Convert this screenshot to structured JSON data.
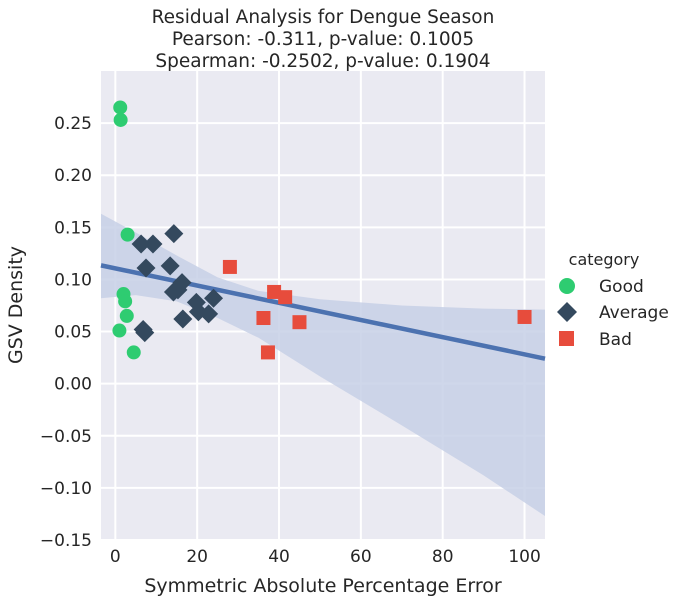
{
  "chart_data": {
    "type": "scatter",
    "title_lines": [
      "Residual Analysis for Dengue Season",
      "Pearson: -0.311, p-value: 0.1005",
      "Spearman: -0.2502, p-value: 0.1904"
    ],
    "xlabel": "Symmetric Absolute Percentage Error",
    "ylabel": "GSV Density",
    "xlim": [
      -3.5,
      105
    ],
    "ylim": [
      -0.15,
      0.3
    ],
    "xticks": [
      0,
      20,
      40,
      60,
      80,
      100
    ],
    "yticks": [
      -0.15,
      -0.1,
      -0.05,
      0.0,
      0.05,
      0.1,
      0.15,
      0.2,
      0.25
    ],
    "ytick_labels": [
      "−0.15",
      "−0.10",
      "−0.05",
      "0.00",
      "0.05",
      "0.10",
      "0.15",
      "0.20",
      "0.25"
    ],
    "xtick_labels": [
      "0",
      "20",
      "40",
      "60",
      "80",
      "100"
    ],
    "grid": true,
    "background": "#eaeaf2",
    "legend": {
      "title": "category",
      "placement": "right",
      "entries": [
        "Good",
        "Average",
        "Bad"
      ]
    },
    "series": [
      {
        "name": "Good",
        "marker": "circle",
        "color": "#2ecc71",
        "points": [
          [
            1.2,
            0.265
          ],
          [
            1.3,
            0.253
          ],
          [
            3.0,
            0.143
          ],
          [
            2.0,
            0.086
          ],
          [
            2.4,
            0.079
          ],
          [
            2.8,
            0.065
          ],
          [
            1.0,
            0.051
          ],
          [
            4.5,
            0.03
          ]
        ]
      },
      {
        "name": "Average",
        "marker": "diamond",
        "color": "#34495e",
        "points": [
          [
            6.3,
            0.134
          ],
          [
            9.2,
            0.134
          ],
          [
            14.3,
            0.144
          ],
          [
            7.5,
            0.111
          ],
          [
            13.4,
            0.113
          ],
          [
            16.3,
            0.097
          ],
          [
            14.2,
            0.088
          ],
          [
            15.3,
            0.09
          ],
          [
            19.8,
            0.078
          ],
          [
            24.0,
            0.082
          ],
          [
            20.3,
            0.069
          ],
          [
            22.8,
            0.067
          ],
          [
            16.5,
            0.062
          ],
          [
            6.8,
            0.052
          ],
          [
            7.2,
            0.049
          ]
        ]
      },
      {
        "name": "Bad",
        "marker": "square",
        "color": "#e74c3c",
        "points": [
          [
            28.0,
            0.112
          ],
          [
            38.8,
            0.088
          ],
          [
            41.5,
            0.083
          ],
          [
            36.2,
            0.063
          ],
          [
            45.0,
            0.059
          ],
          [
            37.3,
            0.03
          ],
          [
            100.0,
            0.064
          ]
        ]
      }
    ],
    "regression": {
      "color": "#4c72b0",
      "x": [
        -3.5,
        105
      ],
      "y": [
        0.1135,
        0.024
      ],
      "ci_upper": [
        [
          -3.5,
          0.163
        ],
        [
          5,
          0.145
        ],
        [
          15,
          0.123
        ],
        [
          25,
          0.102
        ],
        [
          35,
          0.089
        ],
        [
          50,
          0.081
        ],
        [
          70,
          0.075
        ],
        [
          90,
          0.072
        ],
        [
          105,
          0.071
        ]
      ],
      "ci_lower": [
        [
          -3.5,
          0.082
        ],
        [
          5,
          0.085
        ],
        [
          15,
          0.079
        ],
        [
          25,
          0.063
        ],
        [
          35,
          0.044
        ],
        [
          50,
          0.007
        ],
        [
          70,
          -0.04
        ],
        [
          90,
          -0.088
        ],
        [
          105,
          -0.127
        ]
      ],
      "ci_color": "#c7d0e6"
    }
  }
}
